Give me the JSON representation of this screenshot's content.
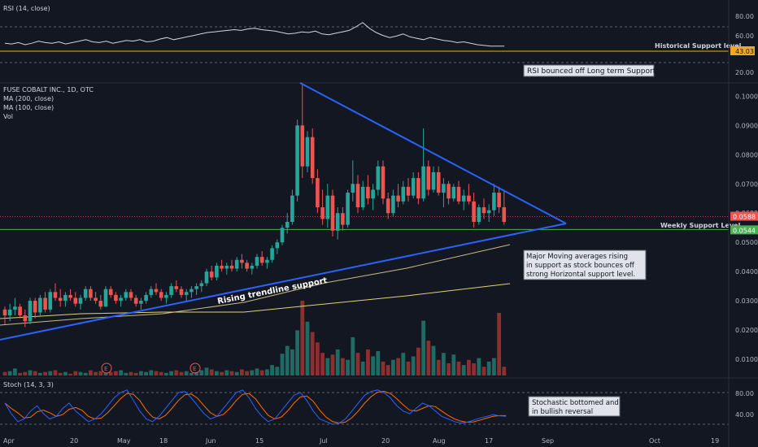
{
  "colors": {
    "bg": "#131722",
    "up": "#26a69a",
    "down": "#ef5350",
    "trend": "#2962ff",
    "ma200": "#e3d26f",
    "ma100": "#c8b88a",
    "rsi": "#d1d4dc",
    "rsi_support": "#f5a623",
    "stoch_k": "#2962ff",
    "stoch_d": "#ff6d00",
    "support_green": "#4caf50",
    "support_red": "#ef5350"
  },
  "rsi_panel": {
    "title": "RSI (14, close)",
    "ticks": [
      "80.00",
      "60.00",
      "40.00",
      "20.00"
    ],
    "value_tag": "43.03",
    "support_label": "Historical Support level",
    "note": "RSI bounced off Long term Support"
  },
  "price_panel": {
    "legend": [
      "FUSE COBALT INC., 1D, OTC",
      "MA (200, close)",
      "MA (100, close)",
      "Vol"
    ],
    "ticks": [
      "0.1000",
      "0.0900",
      "0.0800",
      "0.0700",
      "0.0600",
      "0.0500",
      "0.0400",
      "0.0300",
      "0.0200",
      "0.0100"
    ],
    "tag_red": "0.0588",
    "tag_green": "0.0544",
    "weekly_support_label": "Weekly Support Level",
    "trendline_label": "Rising trendline support",
    "ma_note": [
      "Major Moving averages rising",
      "in support as stock bounces off",
      "strong Horizontal support level."
    ],
    "earnings": [
      "E",
      "E"
    ]
  },
  "stoch_panel": {
    "title": "Stoch (14, 3, 3)",
    "ticks": [
      "80.00",
      "40.00"
    ],
    "note": [
      "Stochastic bottomed and",
      "in bullish reversal"
    ]
  },
  "x_axis": [
    "Apr",
    "20",
    "May",
    "18",
    "Jun",
    "15",
    "Jul",
    "20",
    "Aug",
    "17",
    "Sep",
    "Oct",
    "19"
  ],
  "chart_data": {
    "type": "candlestick",
    "title": "FUSE COBALT INC., 1D, OTC",
    "ylim": [
      0.005,
      0.104
    ],
    "support_levels": [
      0.0588,
      0.0544
    ],
    "candles": [
      [
        0.027,
        0.028,
        0.022,
        0.025
      ],
      [
        0.025,
        0.029,
        0.023,
        0.027
      ],
      [
        0.027,
        0.031,
        0.025,
        0.028
      ],
      [
        0.028,
        0.029,
        0.024,
        0.025
      ],
      [
        0.025,
        0.027,
        0.021,
        0.023
      ],
      [
        0.023,
        0.031,
        0.022,
        0.03
      ],
      [
        0.03,
        0.031,
        0.024,
        0.026
      ],
      [
        0.026,
        0.032,
        0.025,
        0.031
      ],
      [
        0.031,
        0.033,
        0.026,
        0.027
      ],
      [
        0.027,
        0.034,
        0.026,
        0.033
      ],
      [
        0.033,
        0.036,
        0.03,
        0.031
      ],
      [
        0.031,
        0.034,
        0.028,
        0.03
      ],
      [
        0.03,
        0.033,
        0.028,
        0.032
      ],
      [
        0.032,
        0.034,
        0.03,
        0.031
      ],
      [
        0.031,
        0.033,
        0.028,
        0.029
      ],
      [
        0.029,
        0.032,
        0.027,
        0.031
      ],
      [
        0.031,
        0.035,
        0.03,
        0.034
      ],
      [
        0.034,
        0.035,
        0.03,
        0.031
      ],
      [
        0.031,
        0.033,
        0.029,
        0.03
      ],
      [
        0.03,
        0.032,
        0.027,
        0.028
      ],
      [
        0.028,
        0.035,
        0.028,
        0.034
      ],
      [
        0.034,
        0.035,
        0.031,
        0.032
      ],
      [
        0.032,
        0.033,
        0.029,
        0.03
      ],
      [
        0.03,
        0.032,
        0.028,
        0.031
      ],
      [
        0.031,
        0.034,
        0.03,
        0.033
      ],
      [
        0.033,
        0.034,
        0.03,
        0.031
      ],
      [
        0.031,
        0.032,
        0.028,
        0.029
      ],
      [
        0.029,
        0.031,
        0.027,
        0.03
      ],
      [
        0.03,
        0.033,
        0.029,
        0.032
      ],
      [
        0.032,
        0.035,
        0.031,
        0.034
      ],
      [
        0.034,
        0.036,
        0.032,
        0.033
      ],
      [
        0.033,
        0.034,
        0.03,
        0.031
      ],
      [
        0.031,
        0.033,
        0.029,
        0.032
      ],
      [
        0.032,
        0.036,
        0.031,
        0.035
      ],
      [
        0.035,
        0.037,
        0.033,
        0.034
      ],
      [
        0.034,
        0.035,
        0.031,
        0.032
      ],
      [
        0.032,
        0.034,
        0.03,
        0.033
      ],
      [
        0.033,
        0.035,
        0.031,
        0.034
      ],
      [
        0.034,
        0.036,
        0.032,
        0.035
      ],
      [
        0.035,
        0.037,
        0.033,
        0.036
      ],
      [
        0.036,
        0.041,
        0.035,
        0.04
      ],
      [
        0.04,
        0.042,
        0.037,
        0.038
      ],
      [
        0.038,
        0.043,
        0.037,
        0.042
      ],
      [
        0.042,
        0.044,
        0.04,
        0.041
      ],
      [
        0.041,
        0.043,
        0.039,
        0.042
      ],
      [
        0.042,
        0.044,
        0.04,
        0.041
      ],
      [
        0.041,
        0.045,
        0.04,
        0.044
      ],
      [
        0.044,
        0.046,
        0.041,
        0.043
      ],
      [
        0.043,
        0.044,
        0.04,
        0.041
      ],
      [
        0.041,
        0.043,
        0.039,
        0.042
      ],
      [
        0.042,
        0.046,
        0.041,
        0.045
      ],
      [
        0.045,
        0.047,
        0.042,
        0.043
      ],
      [
        0.043,
        0.045,
        0.041,
        0.044
      ],
      [
        0.044,
        0.049,
        0.043,
        0.048
      ],
      [
        0.048,
        0.051,
        0.046,
        0.05
      ],
      [
        0.05,
        0.056,
        0.049,
        0.055
      ],
      [
        0.055,
        0.06,
        0.053,
        0.057
      ],
      [
        0.057,
        0.068,
        0.056,
        0.066
      ],
      [
        0.066,
        0.092,
        0.064,
        0.09
      ],
      [
        0.09,
        0.104,
        0.072,
        0.076
      ],
      [
        0.076,
        0.088,
        0.074,
        0.086
      ],
      [
        0.086,
        0.089,
        0.07,
        0.072
      ],
      [
        0.072,
        0.075,
        0.06,
        0.062
      ],
      [
        0.062,
        0.068,
        0.056,
        0.058
      ],
      [
        0.058,
        0.07,
        0.055,
        0.066
      ],
      [
        0.066,
        0.068,
        0.052,
        0.054
      ],
      [
        0.054,
        0.062,
        0.051,
        0.06
      ],
      [
        0.06,
        0.062,
        0.054,
        0.056
      ],
      [
        0.056,
        0.068,
        0.055,
        0.067
      ],
      [
        0.067,
        0.078,
        0.064,
        0.07
      ],
      [
        0.07,
        0.073,
        0.06,
        0.062
      ],
      [
        0.062,
        0.071,
        0.061,
        0.069
      ],
      [
        0.069,
        0.073,
        0.063,
        0.065
      ],
      [
        0.065,
        0.07,
        0.061,
        0.068
      ],
      [
        0.068,
        0.078,
        0.066,
        0.076
      ],
      [
        0.076,
        0.078,
        0.063,
        0.065
      ],
      [
        0.065,
        0.067,
        0.058,
        0.06
      ],
      [
        0.06,
        0.068,
        0.059,
        0.066
      ],
      [
        0.066,
        0.07,
        0.062,
        0.064
      ],
      [
        0.064,
        0.071,
        0.063,
        0.069
      ],
      [
        0.069,
        0.072,
        0.064,
        0.066
      ],
      [
        0.066,
        0.074,
        0.065,
        0.072
      ],
      [
        0.072,
        0.074,
        0.063,
        0.065
      ],
      [
        0.065,
        0.089,
        0.064,
        0.076
      ],
      [
        0.076,
        0.078,
        0.066,
        0.068
      ],
      [
        0.068,
        0.076,
        0.067,
        0.074
      ],
      [
        0.074,
        0.076,
        0.066,
        0.067
      ],
      [
        0.067,
        0.072,
        0.062,
        0.07
      ],
      [
        0.07,
        0.071,
        0.063,
        0.065
      ],
      [
        0.065,
        0.07,
        0.064,
        0.069
      ],
      [
        0.069,
        0.071,
        0.063,
        0.064
      ],
      [
        0.064,
        0.068,
        0.061,
        0.066
      ],
      [
        0.066,
        0.07,
        0.063,
        0.064
      ],
      [
        0.064,
        0.067,
        0.055,
        0.057
      ],
      [
        0.057,
        0.063,
        0.056,
        0.062
      ],
      [
        0.062,
        0.065,
        0.058,
        0.06
      ],
      [
        0.06,
        0.063,
        0.057,
        0.061
      ],
      [
        0.061,
        0.07,
        0.059,
        0.067
      ],
      [
        0.067,
        0.069,
        0.06,
        0.062
      ],
      [
        0.062,
        0.068,
        0.056,
        0.057
      ]
    ],
    "volume": [
      0.4,
      0.5,
      0.8,
      0.3,
      0.4,
      0.6,
      0.5,
      0.3,
      0.4,
      0.5,
      0.6,
      0.3,
      0.4,
      0.2,
      0.5,
      0.4,
      0.3,
      0.6,
      0.4,
      0.5,
      0.3,
      0.4,
      0.5,
      0.6,
      0.3,
      0.4,
      0.3,
      0.5,
      0.4,
      0.6,
      0.5,
      0.4,
      0.3,
      0.5,
      0.6,
      0.4,
      0.5,
      0.3,
      0.4,
      0.6,
      0.9,
      0.7,
      0.5,
      0.4,
      0.6,
      0.5,
      0.4,
      0.7,
      0.5,
      0.6,
      0.8,
      0.6,
      0.7,
      1.2,
      1.0,
      2.5,
      3.4,
      3.0,
      5.2,
      8.6,
      6.2,
      5.0,
      3.8,
      2.6,
      2.0,
      2.4,
      3.0,
      2.0,
      1.8,
      4.4,
      2.6,
      1.6,
      3.0,
      2.2,
      2.8,
      1.6,
      1.2,
      1.8,
      2.0,
      2.6,
      1.6,
      2.2,
      3.2,
      6.3,
      4.0,
      3.4,
      1.8,
      2.6,
      1.4,
      2.4,
      1.6,
      1.2,
      1.8,
      1.4,
      2.0,
      1.0,
      1.6,
      2.0,
      7.2,
      1.0
    ]
  }
}
